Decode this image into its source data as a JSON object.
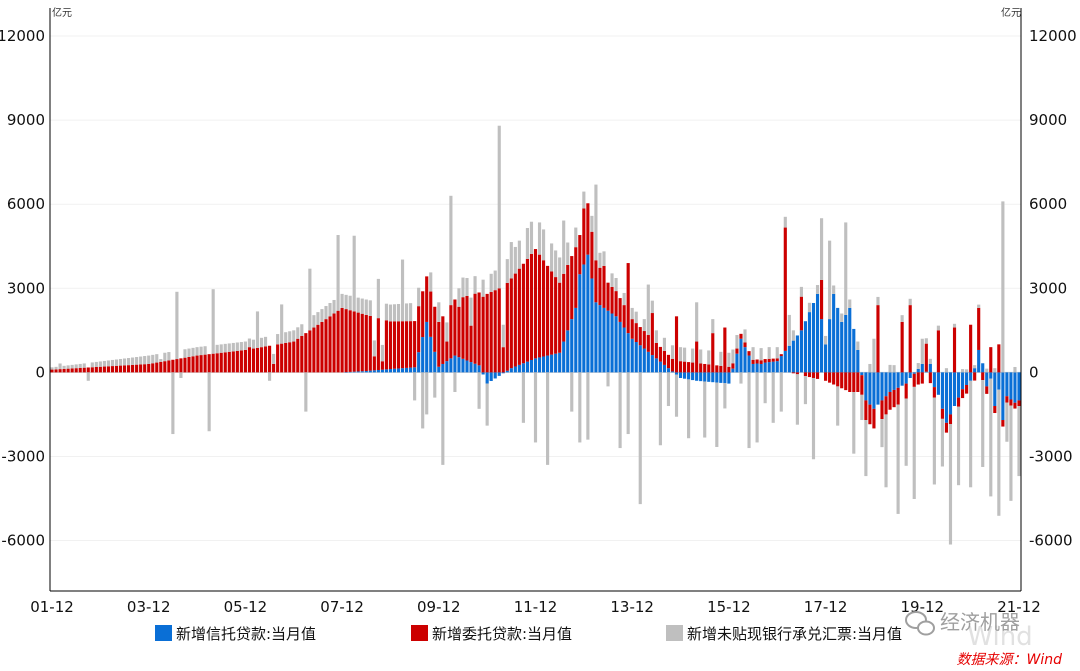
{
  "chart_data": {
    "type": "bar",
    "stacked": true,
    "unit_left": "亿元",
    "unit_right": "亿元",
    "ylim": [
      -7800,
      13000
    ],
    "yticks": [
      -6000,
      -3000,
      0,
      3000,
      6000,
      9000,
      12000
    ],
    "ytick_labels": [
      "-6000",
      "-3000",
      "0",
      "3000",
      "6000",
      "9000",
      "12000"
    ],
    "xtick_labels": [
      "01-12",
      "03-12",
      "05-12",
      "07-12",
      "09-12",
      "11-12",
      "13-12",
      "15-12",
      "17-12",
      "19-12",
      "21-12"
    ],
    "x_start": "2001-12",
    "x_end": "2021-12",
    "frequency": "monthly",
    "legend_position": "bottom",
    "series": [
      {
        "name": "新增信托贷款:当月值",
        "color": "#0a6fd6"
      },
      {
        "name": "新增委托贷款:当月值",
        "color": "#cc0000"
      },
      {
        "name": "新增未贴现银行承兑汇票:当月值",
        "color": "#bfbfbf"
      }
    ],
    "anchors": {
      "trust": [
        [
          0,
          0
        ],
        [
          72,
          0
        ],
        [
          78,
          50
        ],
        [
          84,
          120
        ],
        [
          90,
          180
        ],
        [
          93,
          1800
        ],
        [
          96,
          200
        ],
        [
          100,
          600
        ],
        [
          106,
          250
        ],
        [
          108,
          -400
        ],
        [
          114,
          150
        ],
        [
          120,
          500
        ],
        [
          126,
          700
        ],
        [
          130,
          2300
        ],
        [
          131,
          3500
        ],
        [
          133,
          4200
        ],
        [
          135,
          2500
        ],
        [
          140,
          2000
        ],
        [
          144,
          1200
        ],
        [
          150,
          500
        ],
        [
          156,
          -200
        ],
        [
          160,
          -300
        ],
        [
          168,
          -400
        ],
        [
          171,
          1200
        ],
        [
          174,
          300
        ],
        [
          180,
          400
        ],
        [
          186,
          1500
        ],
        [
          190,
          2800
        ],
        [
          192,
          1000
        ],
        [
          194,
          2800
        ],
        [
          196,
          1800
        ],
        [
          198,
          2300
        ],
        [
          200,
          800
        ],
        [
          202,
          -1000
        ],
        [
          204,
          -1300
        ],
        [
          208,
          -700
        ],
        [
          212,
          -400
        ],
        [
          216,
          300
        ],
        [
          220,
          -800
        ],
        [
          222,
          -1800
        ],
        [
          226,
          -600
        ],
        [
          228,
          -300
        ],
        [
          230,
          600
        ],
        [
          234,
          -500
        ],
        [
          240,
          -1200
        ],
        [
          241,
          -300
        ],
        [
          246,
          -800
        ],
        [
          250,
          -1400
        ],
        [
          256,
          -1700
        ],
        [
          258,
          -1200
        ],
        [
          264,
          -2000
        ],
        [
          266,
          -1000
        ],
        [
          270,
          -4500
        ],
        [
          271,
          -500
        ]
      ],
      "entrusted": [
        [
          0,
          100
        ],
        [
          12,
          200
        ],
        [
          24,
          300
        ],
        [
          36,
          600
        ],
        [
          48,
          800
        ],
        [
          60,
          1100
        ],
        [
          72,
          2300
        ],
        [
          84,
          1700
        ],
        [
          96,
          1600
        ],
        [
          108,
          2800
        ],
        [
          114,
          3200
        ],
        [
          120,
          3900
        ],
        [
          126,
          2500
        ],
        [
          132,
          2000
        ],
        [
          138,
          1000
        ],
        [
          144,
          700
        ],
        [
          156,
          400
        ],
        [
          168,
          200
        ],
        [
          180,
          100
        ],
        [
          192,
          -300
        ],
        [
          198,
          -700
        ],
        [
          204,
          -700
        ],
        [
          210,
          -600
        ],
        [
          216,
          -400
        ],
        [
          228,
          -300
        ],
        [
          240,
          -200
        ],
        [
          252,
          -100
        ],
        [
          264,
          -200
        ],
        [
          270,
          -300
        ],
        [
          271,
          -100
        ]
      ],
      "bills": [
        [
          0,
          80
        ],
        [
          24,
          300
        ],
        [
          48,
          300
        ],
        [
          72,
          500
        ],
        [
          84,
          600
        ],
        [
          96,
          700
        ],
        [
          108,
          600
        ],
        [
          120,
          1200
        ],
        [
          132,
          600
        ],
        [
          144,
          400
        ],
        [
          156,
          500
        ],
        [
          168,
          500
        ],
        [
          180,
          400
        ],
        [
          192,
          300
        ],
        [
          204,
          300
        ],
        [
          216,
          200
        ],
        [
          228,
          100
        ],
        [
          240,
          200
        ],
        [
          252,
          100
        ],
        [
          264,
          100
        ],
        [
          271,
          -500
        ]
      ]
    },
    "spikes": {
      "bills": [
        [
          2,
          200
        ],
        [
          9,
          -300
        ],
        [
          27,
          100
        ],
        [
          30,
          -2200
        ],
        [
          31,
          2400
        ],
        [
          32,
          -200
        ],
        [
          39,
          -2100
        ],
        [
          40,
          2300
        ],
        [
          51,
          1300
        ],
        [
          54,
          -300
        ],
        [
          57,
          1400
        ],
        [
          63,
          -1400
        ],
        [
          64,
          2200
        ],
        [
          71,
          2700
        ],
        [
          75,
          2700
        ],
        [
          81,
          1400
        ],
        [
          87,
          2200
        ],
        [
          90,
          -1000
        ],
        [
          92,
          -2000
        ],
        [
          93,
          -1500
        ],
        [
          95,
          -900
        ],
        [
          97,
          -3300
        ],
        [
          99,
          3900
        ],
        [
          100,
          -700
        ],
        [
          102,
          700
        ],
        [
          104,
          1000
        ],
        [
          106,
          -1300
        ],
        [
          108,
          -1500
        ],
        [
          111,
          5800
        ],
        [
          114,
          1300
        ],
        [
          117,
          -1800
        ],
        [
          120,
          -2500
        ],
        [
          123,
          -3300
        ],
        [
          127,
          1900
        ],
        [
          129,
          -1400
        ],
        [
          131,
          -2500
        ],
        [
          133,
          -2400
        ],
        [
          135,
          2700
        ],
        [
          138,
          -500
        ],
        [
          141,
          -2700
        ],
        [
          143,
          -2200
        ],
        [
          146,
          -4700
        ],
        [
          148,
          1800
        ],
        [
          151,
          -2600
        ],
        [
          153,
          -1200
        ],
        [
          155,
          -1500
        ],
        [
          158,
          -2100
        ],
        [
          160,
          1400
        ],
        [
          162,
          -2000
        ],
        [
          165,
          -2300
        ],
        [
          167,
          -900
        ],
        [
          171,
          -400
        ],
        [
          173,
          -2700
        ],
        [
          175,
          -2500
        ],
        [
          177,
          -1100
        ],
        [
          179,
          -1800
        ],
        [
          181,
          -1400
        ],
        [
          183,
          1100
        ],
        [
          185,
          -1800
        ],
        [
          187,
          -1000
        ],
        [
          189,
          -2900
        ],
        [
          191,
          2200
        ],
        [
          193,
          2800
        ],
        [
          195,
          -1400
        ],
        [
          197,
          3300
        ],
        [
          199,
          -2200
        ],
        [
          201,
          -900
        ],
        [
          202,
          -2000
        ],
        [
          204,
          1200
        ],
        [
          206,
          -1000
        ],
        [
          207,
          -2600
        ],
        [
          210,
          -3900
        ],
        [
          212,
          -2400
        ],
        [
          214,
          -4000
        ],
        [
          216,
          900
        ],
        [
          219,
          -3100
        ],
        [
          221,
          -1700
        ],
        [
          223,
          -4300
        ],
        [
          225,
          -2800
        ],
        [
          228,
          -3800
        ],
        [
          231,
          -3100
        ],
        [
          233,
          -4200
        ],
        [
          235,
          -4500
        ],
        [
          236,
          6100
        ],
        [
          237,
          -1400
        ],
        [
          238,
          -3400
        ],
        [
          240,
          -2500
        ],
        [
          242,
          -1800
        ],
        [
          244,
          -4200
        ],
        [
          245,
          -3100
        ],
        [
          246,
          -1600
        ],
        [
          249,
          -2800
        ],
        [
          251,
          -1400
        ],
        [
          253,
          -4700
        ],
        [
          255,
          -1600
        ],
        [
          257,
          -4900
        ],
        [
          259,
          -2200
        ],
        [
          261,
          -3500
        ],
        [
          262,
          -2600
        ],
        [
          264,
          -3700
        ],
        [
          266,
          -5500
        ],
        [
          267,
          -2200
        ],
        [
          268,
          -1900
        ],
        [
          270,
          -3800
        ],
        [
          271,
          -900
        ]
      ],
      "entrusted": [
        [
          49,
          900
        ],
        [
          55,
          300
        ],
        [
          80,
          500
        ],
        [
          82,
          300
        ],
        [
          98,
          700
        ],
        [
          101,
          1800
        ],
        [
          104,
          1300
        ],
        [
          112,
          900
        ],
        [
          131,
          1400
        ],
        [
          137,
          1500
        ],
        [
          143,
          2500
        ],
        [
          149,
          1500
        ],
        [
          155,
          2000
        ],
        [
          160,
          1100
        ],
        [
          164,
          1400
        ],
        [
          167,
          1600
        ],
        [
          182,
          4400
        ],
        [
          186,
          1200
        ],
        [
          191,
          1400
        ],
        [
          205,
          2400
        ],
        [
          211,
          1800
        ],
        [
          213,
          2400
        ],
        [
          217,
          1000
        ],
        [
          220,
          1500
        ],
        [
          224,
          1600
        ],
        [
          228,
          1700
        ],
        [
          230,
          1500
        ],
        [
          233,
          900
        ],
        [
          235,
          1000
        ],
        [
          243,
          -700
        ],
        [
          247,
          -1000
        ]
      ],
      "trust": [
        [
          176,
          300
        ],
        [
          213,
          -200
        ],
        [
          218,
          300
        ],
        [
          230,
          800
        ],
        [
          232,
          -500
        ],
        [
          234,
          -1200
        ],
        [
          236,
          -1700
        ],
        [
          240,
          -1000
        ],
        [
          244,
          -1100
        ],
        [
          252,
          -600
        ],
        [
          257,
          600
        ],
        [
          259,
          -900
        ],
        [
          262,
          -2800
        ],
        [
          264,
          -1300
        ],
        [
          266,
          -2000
        ],
        [
          269,
          -700
        ],
        [
          270,
          -2200
        ]
      ]
    }
  },
  "watermark": "经济机器",
  "watermark_bg": "Wind",
  "source": "数据来源：Wind"
}
